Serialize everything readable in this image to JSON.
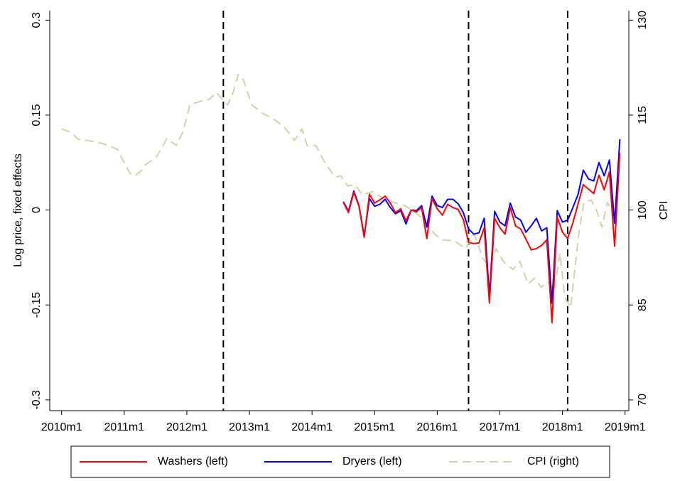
{
  "chart_data": {
    "type": "line",
    "y_label": "Log price, fixed effects",
    "y2_label": "CPI",
    "xlim": [
      2009.81,
      2019.06
    ],
    "xticks": [
      {
        "value": 2010,
        "label": "2010m1"
      },
      {
        "value": 2011,
        "label": "2011m1"
      },
      {
        "value": 2012,
        "label": "2012m1"
      },
      {
        "value": 2013,
        "label": "2013m1"
      },
      {
        "value": 2014,
        "label": "2014m1"
      },
      {
        "value": 2015,
        "label": "2015m1"
      },
      {
        "value": 2016,
        "label": "2016m1"
      },
      {
        "value": 2017,
        "label": "2017m1"
      },
      {
        "value": 2018,
        "label": "2018m1"
      },
      {
        "value": 2019,
        "label": "2019m1"
      }
    ],
    "ylim": [
      -0.317,
      0.315
    ],
    "yticks": [
      -0.3,
      -0.15,
      0,
      0.15,
      0.3
    ],
    "y2lim": [
      68.3,
      131.5
    ],
    "y2ticks": [
      70,
      85,
      100,
      115,
      130
    ],
    "vlines": [
      2012.583,
      2016.5,
      2018.083
    ],
    "vline_color": "#000000",
    "series": [
      {
        "name": "Washers (left)",
        "color": "#ff0000",
        "dash": false,
        "x": [
          2014.5,
          2014.583,
          2014.667,
          2014.75,
          2014.833,
          2014.917,
          2015.0,
          2015.083,
          2015.167,
          2015.25,
          2015.333,
          2015.417,
          2015.5,
          2015.583,
          2015.667,
          2015.75,
          2015.833,
          2015.917,
          2016.0,
          2016.083,
          2016.167,
          2016.25,
          2016.333,
          2016.417,
          2016.5,
          2016.583,
          2016.667,
          2016.75,
          2016.833,
          2016.917,
          2017.0,
          2017.083,
          2017.167,
          2017.25,
          2017.333,
          2017.417,
          2017.5,
          2017.583,
          2017.667,
          2017.75,
          2017.833,
          2017.917,
          2018.0,
          2018.083,
          2018.167,
          2018.25,
          2018.333,
          2018.417,
          2018.5,
          2018.583,
          2018.667,
          2018.75,
          2018.833,
          2018.917
        ],
        "values": [
          0.012,
          -0.004,
          0.028,
          0.006,
          -0.043,
          0.025,
          0.011,
          0.016,
          0.022,
          0.011,
          -0.004,
          0.002,
          -0.017,
          0.0,
          -0.003,
          0.004,
          -0.045,
          0.018,
          0.002,
          -0.008,
          0.009,
          0.004,
          0.001,
          -0.015,
          -0.051,
          -0.053,
          -0.052,
          -0.028,
          -0.147,
          -0.013,
          -0.028,
          -0.038,
          0.004,
          -0.025,
          -0.03,
          -0.046,
          -0.063,
          -0.061,
          -0.056,
          -0.047,
          -0.178,
          -0.011,
          -0.035,
          -0.045,
          -0.02,
          0.01,
          0.04,
          0.033,
          0.026,
          0.055,
          0.032,
          0.06,
          -0.057,
          0.09
        ]
      },
      {
        "name": "Dryers (left)",
        "color": "#0000ff",
        "dash": false,
        "x": [
          2014.5,
          2014.583,
          2014.667,
          2014.75,
          2014.833,
          2014.917,
          2015.0,
          2015.083,
          2015.167,
          2015.25,
          2015.333,
          2015.417,
          2015.5,
          2015.583,
          2015.667,
          2015.75,
          2015.833,
          2015.917,
          2016.0,
          2016.083,
          2016.167,
          2016.25,
          2016.333,
          2016.417,
          2016.5,
          2016.583,
          2016.667,
          2016.75,
          2016.833,
          2016.917,
          2017.0,
          2017.083,
          2017.167,
          2017.25,
          2017.333,
          2017.417,
          2017.5,
          2017.583,
          2017.667,
          2017.75,
          2017.833,
          2017.917,
          2018.0,
          2018.083,
          2018.167,
          2018.25,
          2018.333,
          2018.417,
          2018.5,
          2018.583,
          2018.667,
          2018.75,
          2018.833,
          2018.917
        ],
        "values": [
          0.013,
          -0.002,
          0.03,
          0.007,
          -0.041,
          0.018,
          0.006,
          0.009,
          0.017,
          0.004,
          -0.006,
          -0.001,
          -0.022,
          0.0,
          -0.001,
          0.007,
          -0.027,
          0.022,
          0.007,
          0.004,
          0.017,
          0.017,
          0.01,
          -0.004,
          -0.03,
          -0.038,
          -0.036,
          -0.013,
          -0.136,
          -0.002,
          -0.019,
          -0.025,
          0.011,
          -0.011,
          -0.016,
          -0.035,
          -0.025,
          -0.013,
          -0.033,
          -0.028,
          -0.147,
          -0.001,
          -0.019,
          -0.016,
          0.004,
          0.025,
          0.063,
          0.049,
          0.046,
          0.075,
          0.054,
          0.079,
          -0.021,
          0.112
        ]
      },
      {
        "name": "CPI (right)",
        "color": "#d8d0a8",
        "dash": true,
        "axis": "y2",
        "x": [
          2010.0,
          2010.15,
          2010.26,
          2010.4,
          2010.52,
          2010.66,
          2010.89,
          2011.09,
          2011.17,
          2011.28,
          2011.34,
          2011.45,
          2011.53,
          2011.68,
          2011.83,
          2011.94,
          2012.05,
          2012.22,
          2012.36,
          2012.47,
          2012.65,
          2012.74,
          2012.82,
          2012.89,
          2013.04,
          2013.21,
          2013.38,
          2013.55,
          2013.72,
          2013.84,
          2013.92,
          2014.06,
          2014.21,
          2014.37,
          2014.46,
          2014.57,
          2014.69,
          2014.8,
          2014.97,
          2015.14,
          2015.31,
          2015.48,
          2015.65,
          2015.8,
          2015.94,
          2016.07,
          2016.28,
          2016.45,
          2016.59,
          2016.73,
          2016.84,
          2016.94,
          2017.07,
          2017.21,
          2017.32,
          2017.45,
          2017.55,
          2017.66,
          2017.77,
          2017.87,
          2017.96,
          2018.04,
          2018.13,
          2018.26,
          2018.34,
          2018.46,
          2018.55,
          2018.63,
          2018.72,
          2018.8
        ],
        "values": [
          112.8,
          112.3,
          111.2,
          111.0,
          110.8,
          110.5,
          109.6,
          105.8,
          105.4,
          106.3,
          107.2,
          107.9,
          108.6,
          111.3,
          110.2,
          112.4,
          116.6,
          117.2,
          117.5,
          118.6,
          116.6,
          118.6,
          121.4,
          120.9,
          116.6,
          115.3,
          114.4,
          113.2,
          111.0,
          112.8,
          110.2,
          110.2,
          107.4,
          105.2,
          105.4,
          103.8,
          104.0,
          102.4,
          102.9,
          101.8,
          101.2,
          100.7,
          99.6,
          98.4,
          96.4,
          95.3,
          95.1,
          93.9,
          96.2,
          92.3,
          91.0,
          93.9,
          91.7,
          90.6,
          91.9,
          88.3,
          89.2,
          87.8,
          88.6,
          87.2,
          93.2,
          86.1,
          84.6,
          96.2,
          101.2,
          101.6,
          99.8,
          97.3,
          101.2,
          99.6
        ]
      }
    ]
  }
}
